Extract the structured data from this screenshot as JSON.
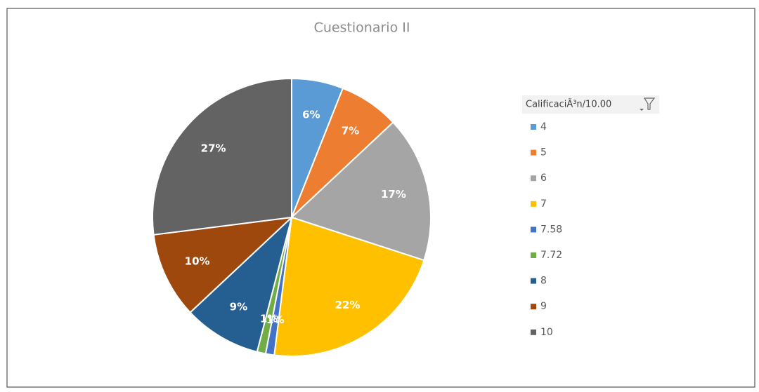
{
  "chart_data": {
    "type": "pie",
    "title": "Cuestionario II",
    "legend_title": "CalificaciÃ³n/10.00",
    "categories": [
      "4",
      "5",
      "6",
      "7",
      "7.58",
      "7.72",
      "8",
      "9",
      "10"
    ],
    "values": [
      6,
      7,
      17,
      22,
      1,
      1,
      9,
      10,
      27
    ],
    "value_labels": [
      "6%",
      "7%",
      "17%",
      "22%",
      "1%",
      "1%",
      "9%",
      "10%",
      "27%"
    ],
    "colors": [
      "#5b9bd5",
      "#ed7d31",
      "#a5a5a5",
      "#ffc000",
      "#4472c4",
      "#70ad47",
      "#255e91",
      "#9e480e",
      "#636363"
    ],
    "legend": "right"
  }
}
